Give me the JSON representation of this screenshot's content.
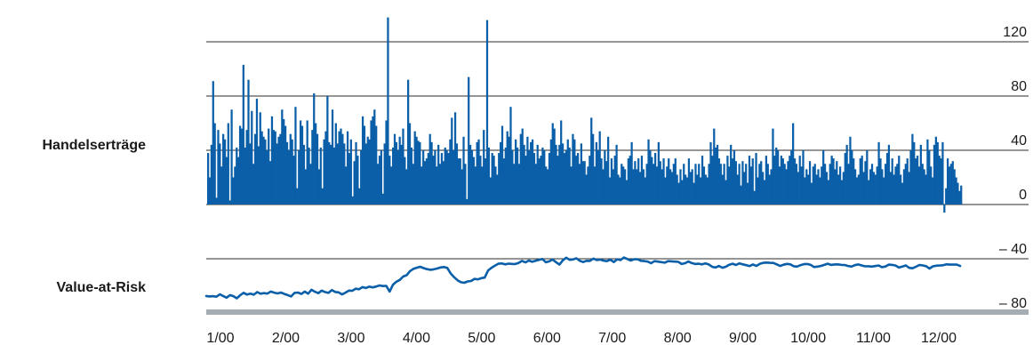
{
  "chart_data": [
    {
      "type": "bar",
      "row_label": "Handelserträge",
      "y_ticks": [
        "0",
        "40",
        "80",
        "120"
      ],
      "ylim": [
        -7,
        145
      ],
      "grid": true,
      "color": "#0a5fa8",
      "values": [
        38,
        20,
        44,
        91,
        60,
        5,
        55,
        45,
        28,
        52,
        48,
        35,
        60,
        3,
        70,
        20,
        28,
        42,
        35,
        58,
        56,
        103,
        42,
        55,
        92,
        45,
        69,
        30,
        52,
        78,
        43,
        68,
        54,
        50,
        48,
        40,
        56,
        32,
        65,
        55,
        54,
        45,
        50,
        52,
        70,
        63,
        58,
        46,
        40,
        52,
        48,
        36,
        38,
        12,
        40,
        62,
        58,
        44,
        26,
        62,
        42,
        30,
        55,
        82,
        60,
        52,
        26,
        42,
        12,
        48,
        54,
        80,
        46,
        44,
        70,
        42,
        60,
        45,
        54,
        56,
        52,
        45,
        28,
        54,
        38,
        48,
        6,
        32,
        46,
        36,
        12,
        40,
        65,
        58,
        45,
        50,
        48,
        62,
        65,
        70,
        58,
        30,
        36,
        40,
        8,
        45,
        62,
        48,
        36,
        28,
        42,
        52,
        46,
        40,
        50,
        44,
        56,
        35,
        26,
        92,
        60,
        42,
        30,
        54,
        50,
        47,
        46,
        28,
        40,
        32,
        34,
        38,
        52,
        46,
        36,
        40,
        28,
        44,
        30,
        38,
        32,
        42,
        40,
        38,
        48,
        64,
        40,
        68,
        45,
        34,
        34,
        26,
        50,
        30,
        4,
        32,
        44,
        40,
        35,
        28,
        46,
        48,
        36,
        28,
        55,
        34,
        26,
        42,
        20,
        38,
        36,
        28,
        22,
        38,
        46,
        58,
        34,
        42,
        54,
        50,
        72,
        40,
        30,
        48,
        42,
        30,
        52,
        56,
        44,
        36,
        50,
        40,
        46,
        48,
        38,
        30,
        44,
        34,
        36,
        42,
        40,
        28,
        26,
        38,
        48,
        50,
        56,
        44,
        36,
        44,
        62,
        45,
        38,
        40,
        48,
        42,
        28,
        52,
        48,
        36,
        38,
        30,
        45,
        32,
        32,
        22,
        28,
        36,
        64,
        52,
        28,
        46,
        40,
        54,
        34,
        26,
        40,
        32,
        50,
        20,
        34,
        26,
        36,
        44,
        22,
        20,
        30,
        28,
        26,
        18,
        34,
        36,
        46,
        26,
        32,
        26,
        34,
        24,
        36,
        26,
        20,
        30,
        48,
        40,
        35,
        30,
        38,
        28,
        46,
        32,
        26,
        34,
        20,
        28,
        34,
        26,
        24,
        30,
        34,
        22,
        16,
        26,
        18,
        30,
        22,
        20,
        34,
        24,
        26,
        16,
        30,
        22,
        30,
        20,
        36,
        28,
        22,
        20,
        30,
        46,
        36,
        56,
        42,
        44,
        34,
        30,
        22,
        30,
        18,
        36,
        28,
        44,
        34,
        40,
        32,
        22,
        30,
        14,
        32,
        24,
        30,
        16,
        36,
        28,
        34,
        10,
        38,
        20,
        30,
        32,
        24,
        18,
        36,
        30,
        22,
        26,
        56,
        36,
        42,
        40,
        28,
        36,
        34,
        30,
        26,
        32,
        36,
        40,
        60,
        34,
        30,
        24,
        36,
        28,
        40,
        20,
        26,
        22,
        32,
        16,
        28,
        30,
        22,
        26,
        20,
        28,
        40,
        30,
        24,
        18,
        30,
        36,
        34,
        26,
        32,
        22,
        28,
        18,
        24,
        38,
        44,
        30,
        50,
        40,
        34,
        26,
        20,
        22,
        34,
        36,
        24,
        32,
        40,
        18,
        26,
        30,
        24,
        22,
        28,
        46,
        34,
        26,
        20,
        30,
        38,
        44,
        24,
        34,
        22,
        28,
        30,
        36,
        22,
        16,
        26,
        30,
        34,
        24,
        40,
        52,
        46,
        34,
        36,
        28,
        44,
        30,
        26,
        22,
        48,
        40,
        28,
        20,
        44,
        50,
        46,
        36,
        34,
        46,
        -6,
        12,
        34,
        28,
        30,
        32,
        26,
        20,
        16,
        10,
        14
      ],
      "peaks": [
        [
          52,
          72
        ],
        [
          107,
          138
        ],
        [
          155,
          94
        ],
        [
          166,
          136
        ],
        [
          205,
          60
        ]
      ]
    },
    {
      "type": "line",
      "row_label": "Value-at-Risk",
      "y_ticks": [
        "– 40",
        "– 80"
      ],
      "ylim": [
        -87,
        -33
      ],
      "grid": true,
      "color": "#0a5fa8",
      "x_start": 1,
      "values": [
        -67.5,
        -67.8,
        -67.6,
        -68.0,
        -66.2,
        -67.5,
        -68.7,
        -66.8,
        -67.6,
        -69.2,
        -66.9,
        -65.1,
        -66.4,
        -65.7,
        -66.5,
        -64.6,
        -65.8,
        -65.3,
        -65.7,
        -64.2,
        -65.0,
        -65.6,
        -64.9,
        -66.0,
        -66.8,
        -67.8,
        -65.2,
        -64.9,
        -66.0,
        -64.2,
        -65.8,
        -62.9,
        -64.3,
        -65.4,
        -63.5,
        -64.6,
        -65.2,
        -63.1,
        -64.5,
        -64.8,
        -66.3,
        -65.0,
        -63.5,
        -63.6,
        -62.1,
        -62.5,
        -60.9,
        -61.6,
        -60.6,
        -61.1,
        -60.5,
        -59.7,
        -60.1,
        -60.0,
        -64.2,
        -59.1,
        -56.9,
        -55.6,
        -53.1,
        -52.1,
        -49.1,
        -47.5,
        -46.6,
        -45.9,
        -46.9,
        -47.7,
        -48.1,
        -47.8,
        -47.2,
        -46.4,
        -46.1,
        -46.8,
        -50.9,
        -53.6,
        -55.9,
        -57.3,
        -57.7,
        -56.7,
        -56.4,
        -54.8,
        -55.2,
        -54.3,
        -53.9,
        -48.7,
        -46.6,
        -45.1,
        -43.7,
        -43.5,
        -44.1,
        -43.6,
        -43.8,
        -43.9,
        -43.1,
        -41.6,
        -42.7,
        -41.3,
        -42.2,
        -41.5,
        -40.8,
        -40.2,
        -42.6,
        -41.9,
        -40.6,
        -42.5,
        -44.3,
        -41.2,
        -39.2,
        -40.8,
        -40.5,
        -39.7,
        -41.5,
        -42.4,
        -41.5,
        -41.6,
        -39.9,
        -40.9,
        -40.6,
        -41.4,
        -41.8,
        -40.7,
        -42.4,
        -40.4,
        -41.0,
        -39.1,
        -40.2,
        -41.4,
        -40.4,
        -40.3,
        -41.5,
        -41.7,
        -42.1,
        -43.3,
        -41.8,
        -42.1,
        -42.5,
        -42.9,
        -41.8,
        -41.9,
        -42.1,
        -42.3,
        -43.9,
        -43.3,
        -42.0,
        -43.2,
        -43.9,
        -43.7,
        -44.1,
        -43.5,
        -44.2,
        -46.0,
        -46.4,
        -45.3,
        -46.6,
        -45.9,
        -44.4,
        -43.7,
        -44.6,
        -43.4,
        -44.1,
        -44.7,
        -45.4,
        -44.2,
        -45.3,
        -43.8,
        -43.0,
        -42.8,
        -43.0,
        -43.1,
        -44.1,
        -45.3,
        -44.4,
        -43.8,
        -44.1,
        -45.5,
        -45.8,
        -44.7,
        -44.0,
        -43.9,
        -44.5,
        -46.1,
        -45.8,
        -45.3,
        -44.5,
        -43.7,
        -44.5,
        -44.2,
        -44.1,
        -44.5,
        -44.6,
        -45.3,
        -45.8,
        -44.7,
        -44.2,
        -44.9,
        -45.6,
        -45.5,
        -45.8,
        -45.4,
        -45.0,
        -46.2,
        -45.7,
        -44.3,
        -44.5,
        -45.0,
        -46.5,
        -45.8,
        -44.9,
        -46.7,
        -47.0,
        -45.9,
        -44.6,
        -44.9,
        -45.5,
        -47.2,
        -45.6,
        -45.1,
        -45.0,
        -44.8,
        -44.1,
        -44.3,
        -44.3,
        -44.3,
        -45.3
      ]
    }
  ],
  "x_axis": {
    "tick_labels": [
      "1/00",
      "2/00",
      "3/00",
      "4/00",
      "5/00",
      "6/00",
      "7/00",
      "8/00",
      "9/00",
      "10/00",
      "11/00",
      "12/00"
    ]
  }
}
